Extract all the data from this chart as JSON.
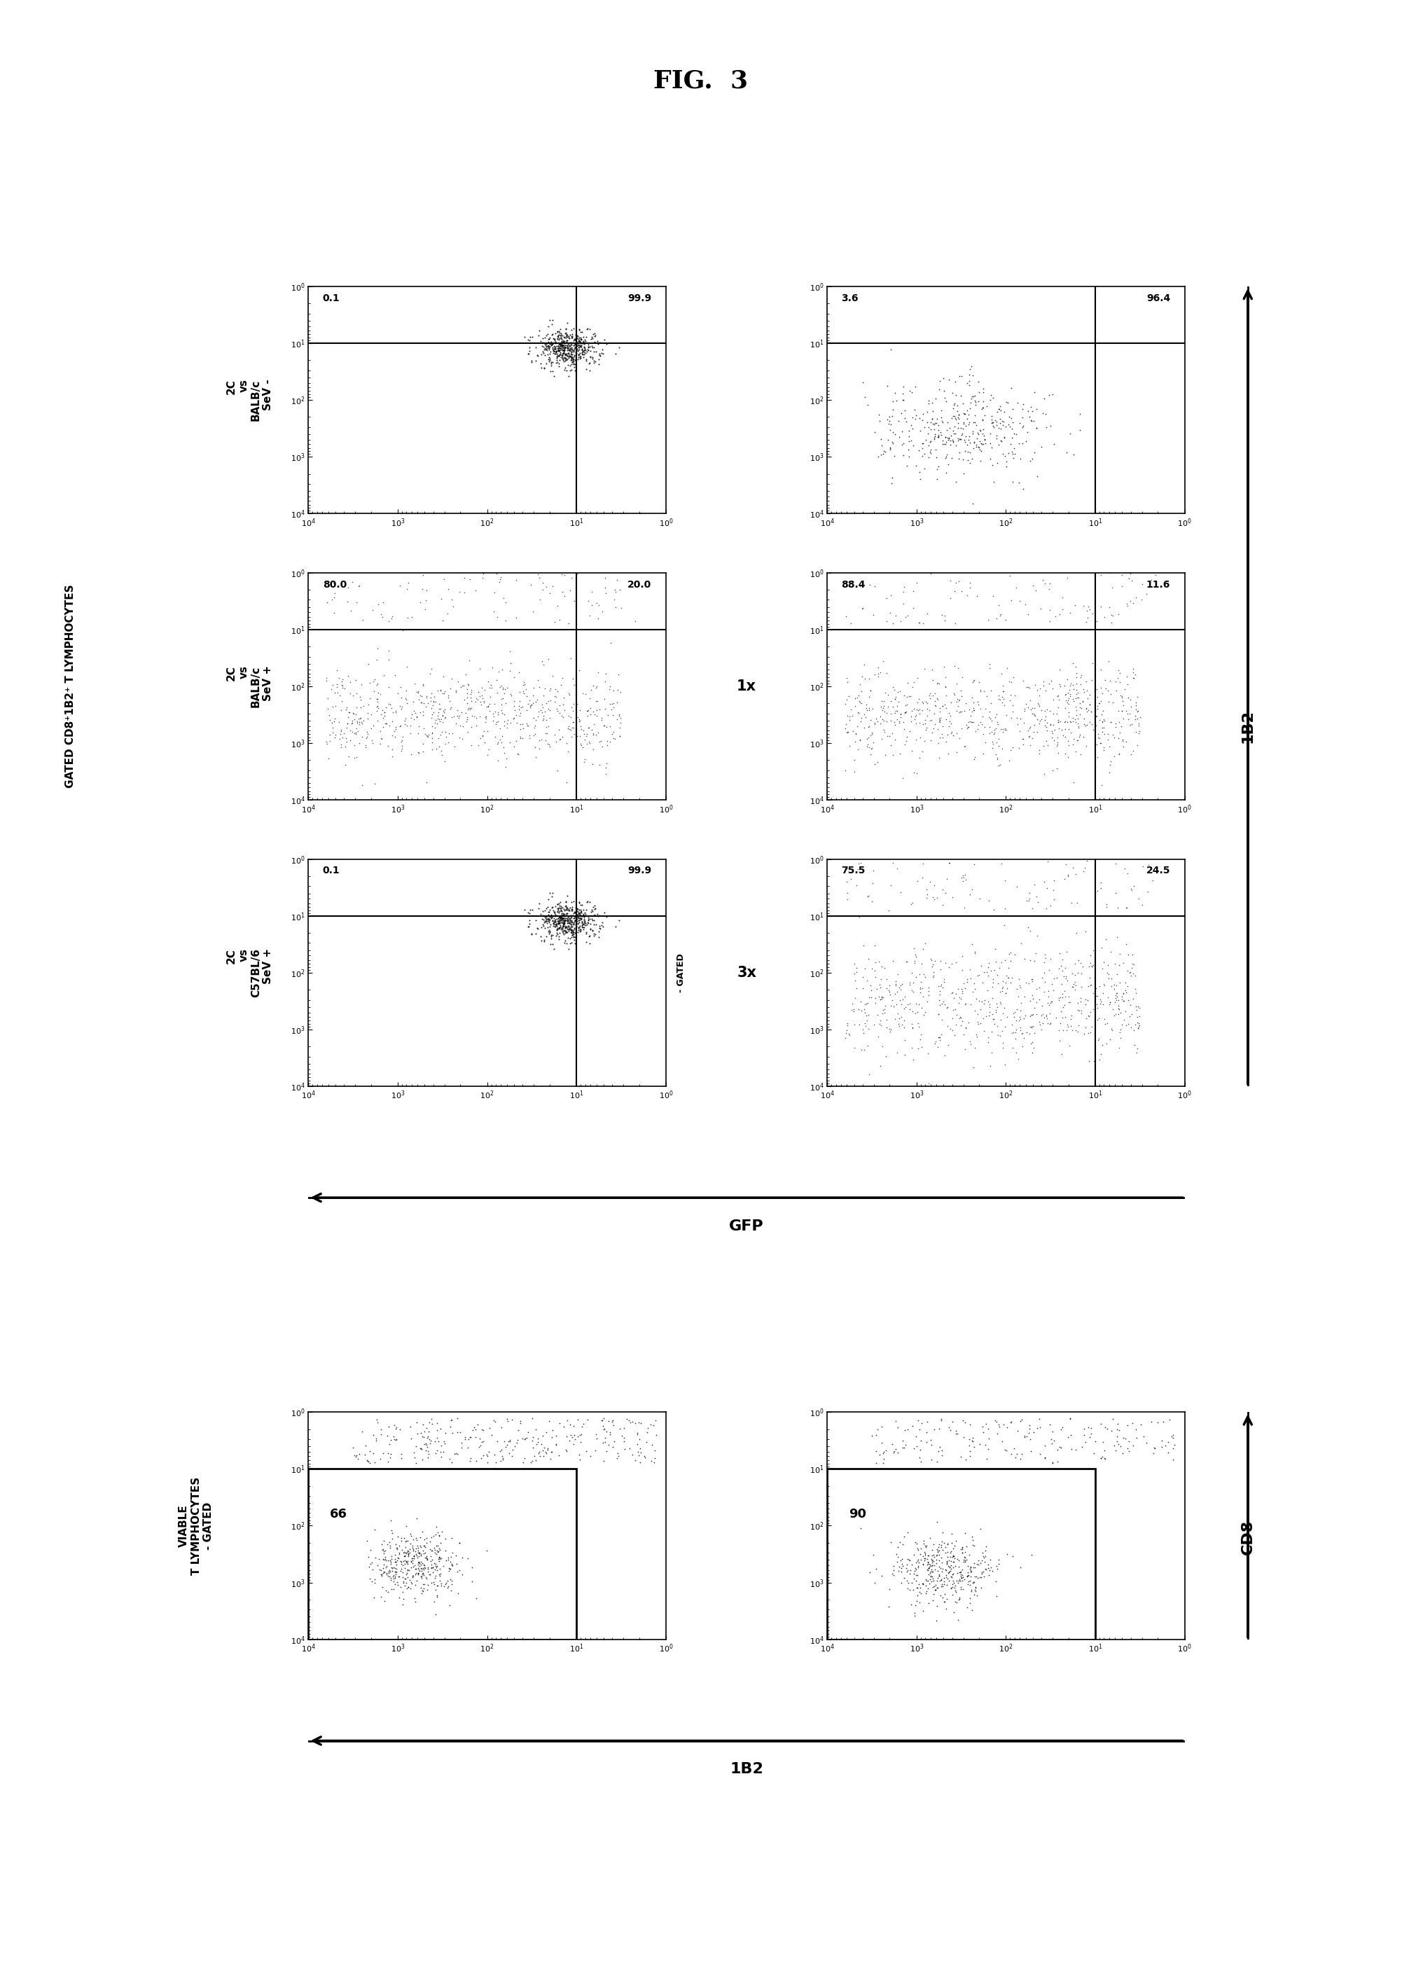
{
  "title": "FIG.  3",
  "background_color": "#ffffff",
  "top_panels": [
    {
      "row": 0,
      "col": 0,
      "TL": "0.1",
      "TR": "99.9",
      "cluster": "br_dense"
    },
    {
      "row": 0,
      "col": 1,
      "TL": "3.6",
      "TR": "96.4",
      "cluster": "tr_sparse"
    },
    {
      "row": 1,
      "col": 0,
      "TL": "80.0",
      "TR": "20.0",
      "cluster": "spread_left"
    },
    {
      "row": 1,
      "col": 1,
      "TL": "88.4",
      "TR": "11.6",
      "cluster": "spread_left"
    },
    {
      "row": 2,
      "col": 0,
      "TL": "0.1",
      "TR": "99.9",
      "cluster": "br_dense"
    },
    {
      "row": 2,
      "col": 1,
      "TL": "75.5",
      "TR": "24.5",
      "cluster": "spread_both"
    }
  ],
  "bottom_panels": [
    {
      "col": 0,
      "label": "66",
      "cluster": "left_cluster"
    },
    {
      "col": 1,
      "label": "90",
      "cluster": "left_cluster2"
    }
  ],
  "row_labels": [
    "2C\nvs\nBALB/c\nSeV -",
    "2C\nvs\nBALB/c\nSeV +",
    "2C\nvs\nC57BL/6\nSeV +"
  ],
  "ylabel_left": "GATED CD8⁺1B2⁺ T LYMPHOCYTES",
  "ylabel_bot_left": "VIABLE\nT LYMPHOCYTES\n- GATED",
  "xlabel_top": "GFP",
  "xlabel_bot": "1B2",
  "label_1x": "1x",
  "label_3x": "3x",
  "label_right_top": "1B2",
  "label_right_bot": "CD8",
  "gated_label": "- GATED",
  "quadrant_line": 10.0,
  "axis_min": 1.0,
  "axis_max": 10000.0
}
